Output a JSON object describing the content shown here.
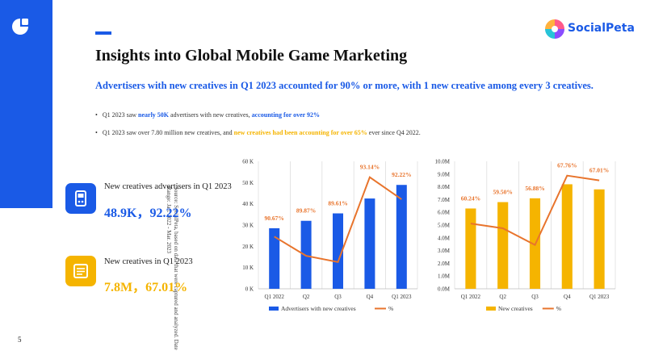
{
  "page": {
    "title": "Insights into Global Mobile Game Marketing",
    "subtitle": "Advertisers with new creatives in Q1 2023 accounted for 90% or more, with 1 new creative among every 3 creatives.",
    "page_number": "5",
    "source_note": "Source: SocialPeta, based on data that were captured and analyzed. Date Range: Jan. 2022 - Mar. 2023",
    "brand": "SocialPeta",
    "accent_color": "#1a5ae6",
    "highlight_color": "#f5b400",
    "line_color": "#e8742c"
  },
  "bullets": [
    {
      "parts": [
        {
          "text": "Q1 2023 saw ",
          "style": ""
        },
        {
          "text": "nearly 50K",
          "style": "blue"
        },
        {
          "text": " advertisers with new creatives, ",
          "style": ""
        },
        {
          "text": "accounting for over 92%",
          "style": "blue"
        }
      ]
    },
    {
      "parts": [
        {
          "text": "Q1 2023 saw over 7.80 million new creatives, and ",
          "style": ""
        },
        {
          "text": "new creatives had been accounting for over 65%",
          "style": "yellow"
        },
        {
          "text": " ever since Q4 2022.",
          "style": ""
        }
      ]
    }
  ],
  "kpis": [
    {
      "label": "New creatives advertisers in Q1 2023",
      "value": "48.9K，92.22%",
      "color": "#1a5ae6",
      "icon": "game-controller-icon"
    },
    {
      "label": "New creatives in Q1 2023",
      "value": "7.8M，67.01%",
      "color": "#f5b400",
      "icon": "creative-card-icon"
    }
  ],
  "chart_data": [
    {
      "type": "bar",
      "categories": [
        "Q1 2022",
        "Q2",
        "Q3",
        "Q4",
        "Q1 2023"
      ],
      "series": [
        {
          "name": "Advertisers with new creatives",
          "kind": "bar",
          "axis": "left",
          "color": "#1a5ae6",
          "values": [
            28.5,
            32,
            35.5,
            42.5,
            48.9
          ]
        },
        {
          "name": "%",
          "kind": "line",
          "axis": "right",
          "color": "#e8742c",
          "values": [
            90.67,
            89.87,
            89.61,
            93.14,
            92.22
          ],
          "labels": [
            "90.67%",
            "89.87%",
            "89.61%",
            "93.14%",
            "92.22%"
          ]
        }
      ],
      "yticks": [
        "0 K",
        "10 K",
        "20 K",
        "30 K",
        "40 K",
        "50 K",
        "60 K"
      ],
      "ylim": [
        0,
        60
      ],
      "y2lim": [
        88.5,
        93.8
      ],
      "legend_position": "bottom"
    },
    {
      "type": "bar",
      "categories": [
        "Q1 2022",
        "Q2",
        "Q3",
        "Q4",
        "Q1 2023"
      ],
      "series": [
        {
          "name": "New creatives",
          "kind": "bar",
          "axis": "left",
          "color": "#f5b400",
          "values": [
            6.3,
            6.8,
            7.1,
            8.2,
            7.8
          ]
        },
        {
          "name": "%",
          "kind": "line",
          "axis": "right",
          "color": "#e8742c",
          "values": [
            60.24,
            59.5,
            56.88,
            67.76,
            67.01
          ],
          "labels": [
            "60.24%",
            "59.50%",
            "56.88%",
            "67.76%",
            "67.01%"
          ]
        }
      ],
      "yticks": [
        "0.0M",
        "1.0M",
        "2.0M",
        "3.0M",
        "4.0M",
        "5.0M",
        "6.0M",
        "7.0M",
        "8.0M",
        "9.0M",
        "10.0M"
      ],
      "ylim": [
        0,
        10
      ],
      "y2lim": [
        50,
        70
      ],
      "legend_position": "bottom"
    }
  ]
}
